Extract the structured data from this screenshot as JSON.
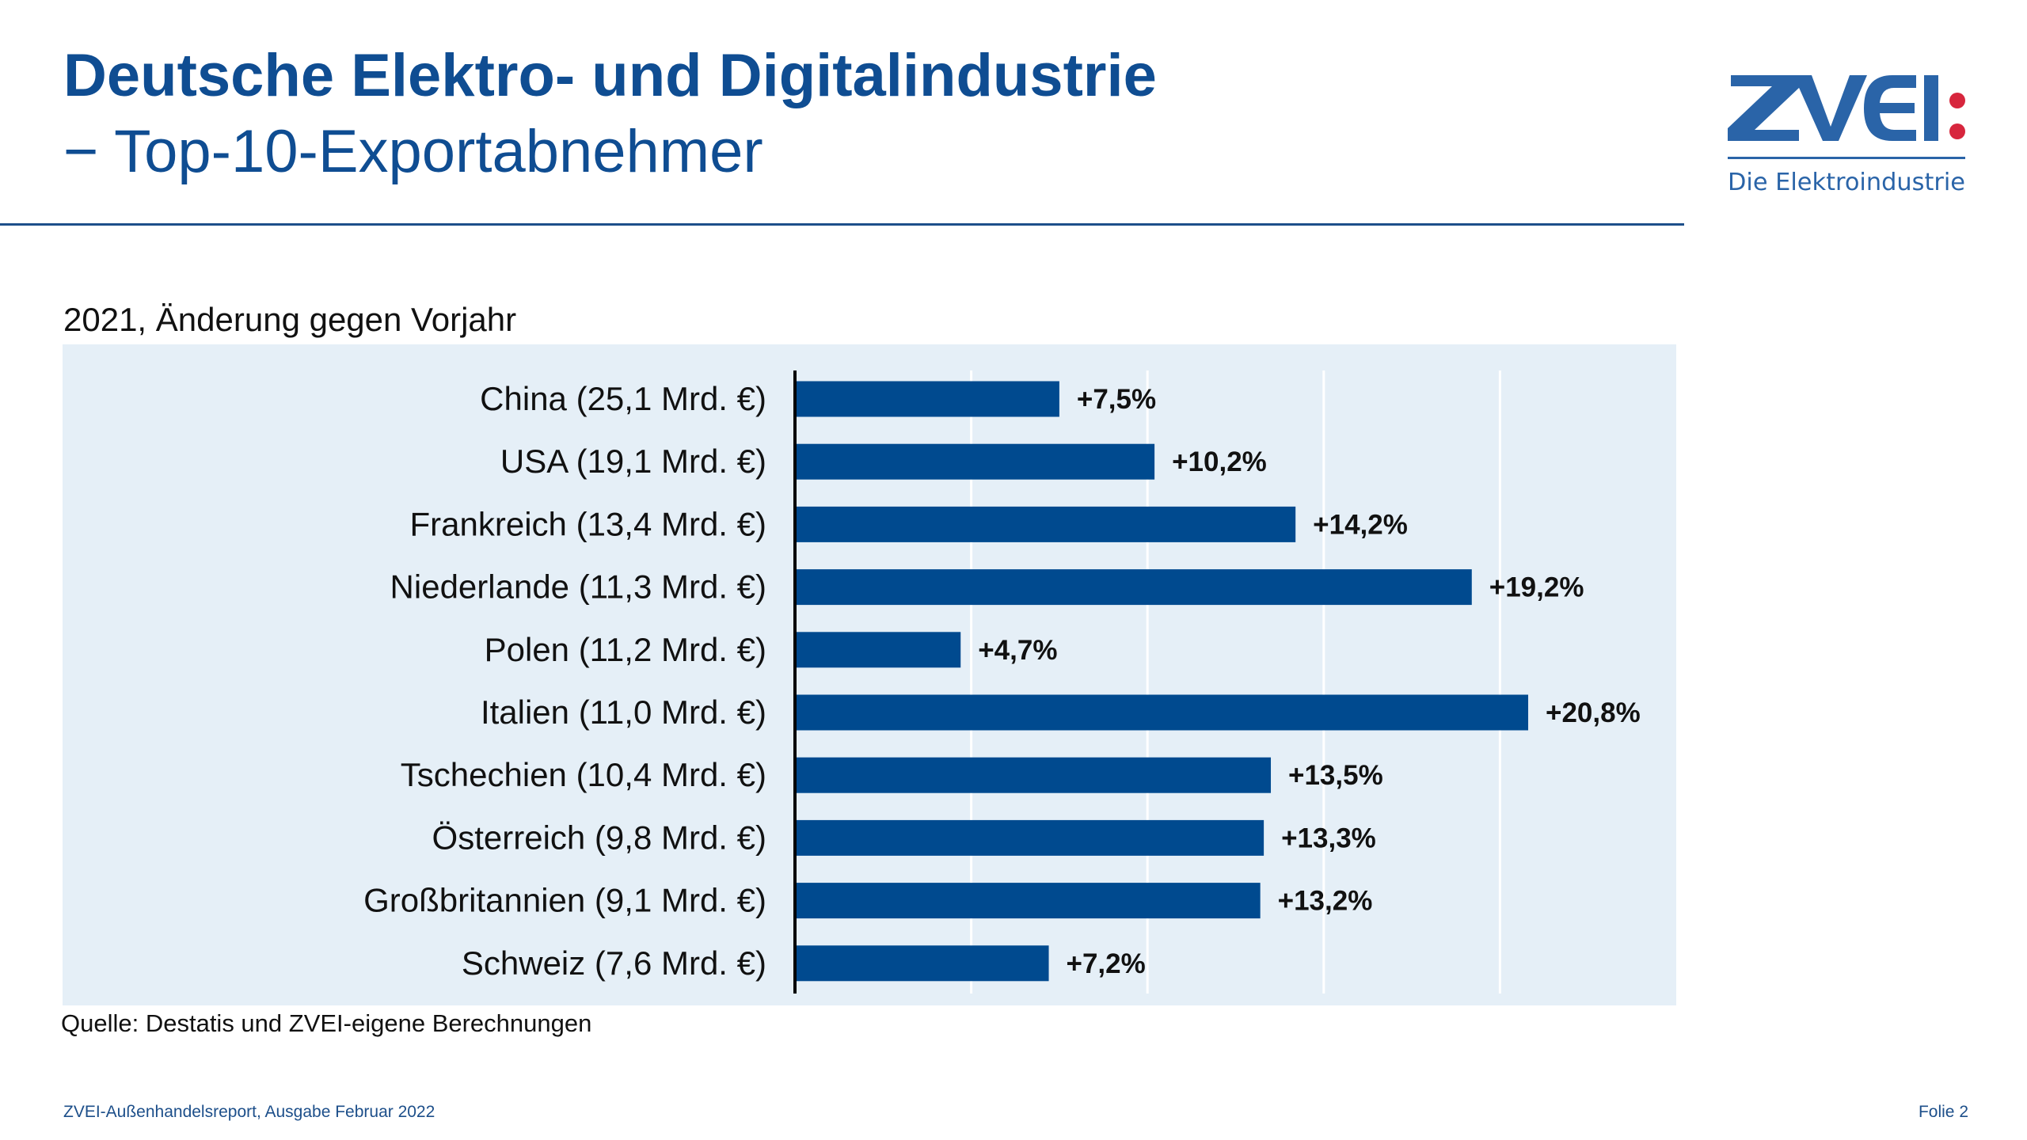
{
  "header": {
    "title_line1": "Deutsche Elektro- und Digitalindustrie",
    "title_line2": "− Top-10-Exportabnehmer"
  },
  "logo": {
    "wordmark": "ZVEI:",
    "tagline": "Die Elektroindustrie",
    "colors": {
      "blue": "#2a64a8",
      "red": "#d7263d"
    }
  },
  "chart_data": {
    "type": "bar",
    "orientation": "horizontal",
    "title": "2021, Änderung gegen Vorjahr",
    "categories": [
      "China (25,1 Mrd. €)",
      "USA (19,1 Mrd. €)",
      "Frankreich (13,4 Mrd. €)",
      "Niederlande (11,3 Mrd. €)",
      "Polen (11,2 Mrd. €)",
      "Italien (11,0 Mrd. €)",
      "Tschechien (10,4 Mrd. €)",
      "Österreich (9,8 Mrd. €)",
      "Großbritannien (9,1 Mrd. €)",
      "Schweiz (7,6 Mrd. €)"
    ],
    "values": [
      7.5,
      10.2,
      14.2,
      19.2,
      4.7,
      20.8,
      13.5,
      13.3,
      13.2,
      7.2
    ],
    "data_labels": [
      "+7,5%",
      "+10,2%",
      "+14,2%",
      "+19,2%",
      "+4,7%",
      "+20,8%",
      "+13,5%",
      "+13,3%",
      "+13,2%",
      "+7,2%"
    ],
    "xlim": [
      0,
      25
    ],
    "gridlines": [
      5,
      10,
      15,
      20
    ],
    "grid": true,
    "bar_color": "#004a8f",
    "background_color": "#e5eff7"
  },
  "source": "Quelle: Destatis und ZVEI-eigene Berechnungen",
  "footer": {
    "left": "ZVEI-Außenhandelsreport, Ausgabe Februar 2022",
    "right": "Folie 2"
  }
}
